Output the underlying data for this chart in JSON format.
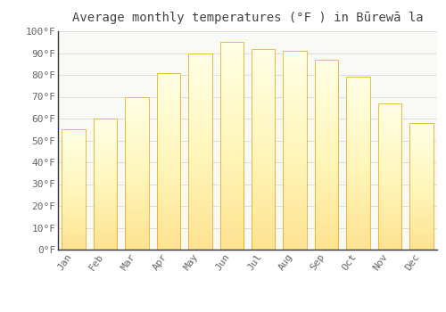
{
  "title": "Average monthly temperatures (°F ) in Būrewā la",
  "months": [
    "Jan",
    "Feb",
    "Mar",
    "Apr",
    "May",
    "Jun",
    "Jul",
    "Aug",
    "Sep",
    "Oct",
    "Nov",
    "Dec"
  ],
  "values": [
    55,
    60,
    70,
    81,
    90,
    95,
    92,
    91,
    87,
    79,
    67,
    58
  ],
  "bar_color_top": "#FDB92E",
  "bar_color_bottom": "#F5A000",
  "ylim": [
    0,
    100
  ],
  "yticks": [
    0,
    10,
    20,
    30,
    40,
    50,
    60,
    70,
    80,
    90,
    100
  ],
  "ytick_labels": [
    "0°F",
    "10°F",
    "20°F",
    "30°F",
    "40°F",
    "50°F",
    "60°F",
    "70°F",
    "80°F",
    "90°F",
    "100°F"
  ],
  "grid_color": "#dddddd",
  "background_color": "#ffffff",
  "plot_bg_color": "#f9f9f5",
  "title_fontsize": 10,
  "tick_fontsize": 8,
  "bar_width": 0.75
}
